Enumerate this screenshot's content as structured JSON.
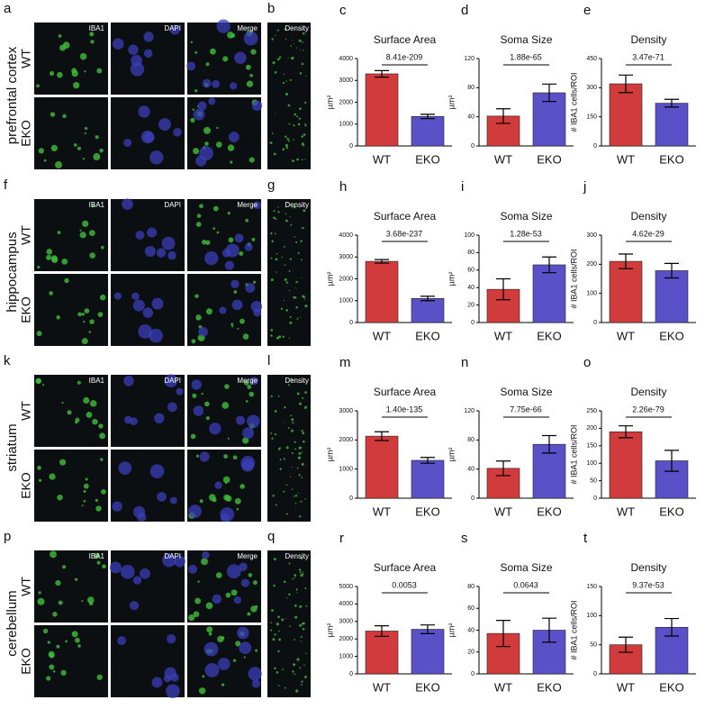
{
  "figure": {
    "rows": [
      {
        "letter": "a",
        "region": "prefrontal cortex",
        "density_letter": "b"
      },
      {
        "letter": "f",
        "region": "hippocampus",
        "density_letter": "g"
      },
      {
        "letter": "k",
        "region": "striatum",
        "density_letter": "l"
      },
      {
        "letter": "p",
        "region": "cerebellum",
        "density_letter": "q"
      }
    ],
    "channels": [
      "IBA1",
      "DAPI",
      "Merge"
    ],
    "genotypes": [
      "WT",
      "EKO"
    ],
    "density_label": "Density"
  },
  "chart_data": [
    {
      "type": "bar",
      "letter": "c",
      "title": "Surface Area",
      "ylabel": "µm²",
      "categories": [
        "WT",
        "EKO"
      ],
      "values": [
        3300,
        1350
      ],
      "errors": [
        150,
        100
      ],
      "colors": [
        "#d23b3b",
        "#5a50c8"
      ],
      "ylim": [
        0,
        4000
      ],
      "yticks": [
        0,
        1000,
        2000,
        3000,
        4000
      ],
      "annotation": "8.41e-209"
    },
    {
      "type": "bar",
      "letter": "d",
      "title": "Soma Size",
      "ylabel": "µm²",
      "categories": [
        "WT",
        "EKO"
      ],
      "values": [
        41,
        73
      ],
      "errors": [
        10,
        12
      ],
      "colors": [
        "#d23b3b",
        "#5a50c8"
      ],
      "ylim": [
        0,
        120
      ],
      "yticks": [
        0,
        40,
        80,
        120
      ],
      "annotation": "1.88e-65"
    },
    {
      "type": "bar",
      "letter": "e",
      "title": "Density",
      "ylabel": "# IBA1 cells/ROI",
      "categories": [
        "WT",
        "EKO"
      ],
      "values": [
        320,
        220
      ],
      "errors": [
        45,
        20
      ],
      "colors": [
        "#d23b3b",
        "#5a50c8"
      ],
      "ylim": [
        0,
        450
      ],
      "yticks": [
        0,
        150,
        300,
        450
      ],
      "annotation": "3.47e-71"
    },
    {
      "type": "bar",
      "letter": "h",
      "title": "Surface Area",
      "ylabel": "µm²",
      "categories": [
        "WT",
        "EKO"
      ],
      "values": [
        2800,
        1100
      ],
      "errors": [
        80,
        100
      ],
      "colors": [
        "#d23b3b",
        "#5a50c8"
      ],
      "ylim": [
        0,
        4000
      ],
      "yticks": [
        0,
        1000,
        2000,
        3000,
        4000
      ],
      "annotation": "3.68e-237"
    },
    {
      "type": "bar",
      "letter": "i",
      "title": "Soma Size",
      "ylabel": "µm²",
      "categories": [
        "WT",
        "EKO"
      ],
      "values": [
        38,
        66
      ],
      "errors": [
        12,
        9
      ],
      "colors": [
        "#d23b3b",
        "#5a50c8"
      ],
      "ylim": [
        0,
        100
      ],
      "yticks": [
        0,
        20,
        40,
        60,
        80,
        100
      ],
      "annotation": "1.28e-53"
    },
    {
      "type": "bar",
      "letter": "j",
      "title": "Density",
      "ylabel": "# IBA1 cells/ROI",
      "categories": [
        "WT",
        "EKO"
      ],
      "values": [
        210,
        178
      ],
      "errors": [
        25,
        25
      ],
      "colors": [
        "#d23b3b",
        "#5a50c8"
      ],
      "ylim": [
        0,
        300
      ],
      "yticks": [
        0,
        100,
        200,
        300
      ],
      "annotation": "4.62e-29"
    },
    {
      "type": "bar",
      "letter": "m",
      "title": "Surface Area",
      "ylabel": "µm²",
      "categories": [
        "WT",
        "EKO"
      ],
      "values": [
        2130,
        1300
      ],
      "errors": [
        150,
        100
      ],
      "colors": [
        "#d23b3b",
        "#5a50c8"
      ],
      "ylim": [
        0,
        3000
      ],
      "yticks": [
        0,
        1000,
        2000,
        3000
      ],
      "annotation": "1.40e-135"
    },
    {
      "type": "bar",
      "letter": "n",
      "title": "Soma Size",
      "ylabel": "µm²",
      "categories": [
        "WT",
        "EKO"
      ],
      "values": [
        41,
        74
      ],
      "errors": [
        10,
        12
      ],
      "colors": [
        "#d23b3b",
        "#5a50c8"
      ],
      "ylim": [
        0,
        120
      ],
      "yticks": [
        0,
        40,
        80,
        120
      ],
      "annotation": "7.75e-66"
    },
    {
      "type": "bar",
      "letter": "o",
      "title": "Density",
      "ylabel": "# IBA1 cells/ROI",
      "categories": [
        "WT",
        "EKO"
      ],
      "values": [
        190,
        107
      ],
      "errors": [
        17,
        30
      ],
      "colors": [
        "#d23b3b",
        "#5a50c8"
      ],
      "ylim": [
        0,
        250
      ],
      "yticks": [
        0,
        50,
        100,
        150,
        200,
        250
      ],
      "annotation": "2.26e-79"
    },
    {
      "type": "bar",
      "letter": "r",
      "title": "Surface Area",
      "ylabel": "µm²",
      "categories": [
        "WT",
        "EKO"
      ],
      "values": [
        2450,
        2550
      ],
      "errors": [
        300,
        250
      ],
      "colors": [
        "#d23b3b",
        "#5a50c8"
      ],
      "ylim": [
        0,
        5000
      ],
      "yticks": [
        0,
        1000,
        2000,
        3000,
        4000,
        5000
      ],
      "annotation": "0.0053"
    },
    {
      "type": "bar",
      "letter": "s",
      "title": "Soma Size",
      "ylabel": "µm²",
      "categories": [
        "WT",
        "EKO"
      ],
      "values": [
        37,
        40
      ],
      "errors": [
        12,
        11
      ],
      "colors": [
        "#d23b3b",
        "#5a50c8"
      ],
      "ylim": [
        0,
        80
      ],
      "yticks": [
        0,
        20,
        40,
        60,
        80
      ],
      "annotation": "0.0643"
    },
    {
      "type": "bar",
      "letter": "t",
      "title": "Density",
      "ylabel": "# IBA1 cells/ROI",
      "categories": [
        "WT",
        "EKO"
      ],
      "values": [
        50,
        80
      ],
      "errors": [
        13,
        15
      ],
      "colors": [
        "#d23b3b",
        "#5a50c8"
      ],
      "ylim": [
        0,
        150
      ],
      "yticks": [
        0,
        50,
        100,
        150
      ],
      "annotation": "9.37e-53"
    }
  ]
}
